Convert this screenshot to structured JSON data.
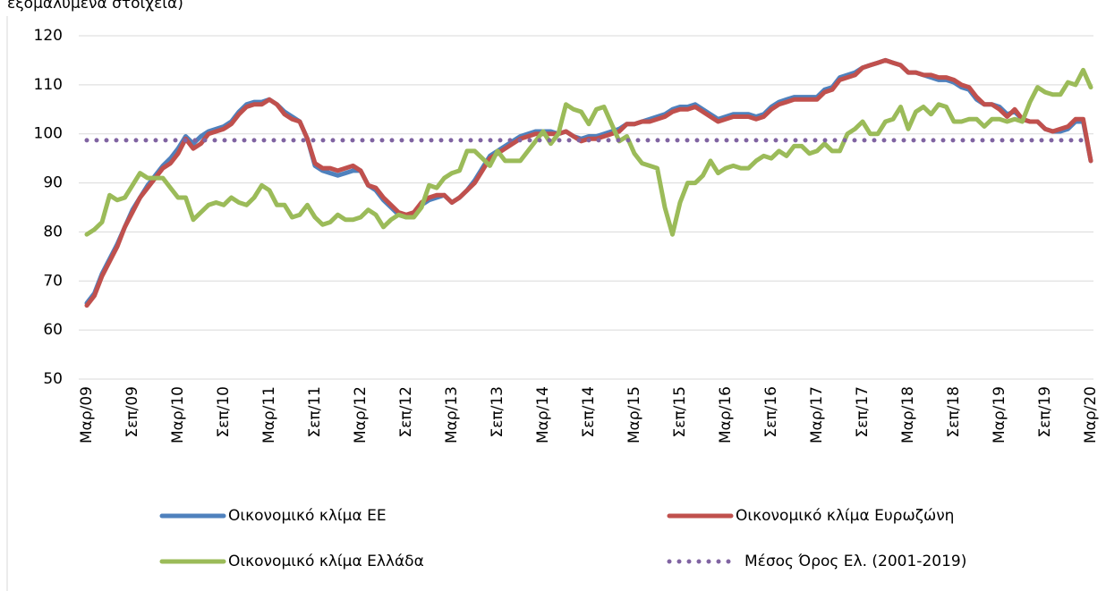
{
  "chart_data": {
    "type": "line",
    "subtitle": "εξομαλυμένα στοιχεία)",
    "categories": [
      "Μαρ/09",
      null,
      null,
      null,
      null,
      null,
      "Σεπ/09",
      null,
      null,
      null,
      null,
      null,
      "Μαρ/10",
      null,
      null,
      null,
      null,
      null,
      "Σεπ/10",
      null,
      null,
      null,
      null,
      null,
      "Μαρ/11",
      null,
      null,
      null,
      null,
      null,
      "Σεπ/11",
      null,
      null,
      null,
      null,
      null,
      "Μαρ/12",
      null,
      null,
      null,
      null,
      null,
      "Σεπ/12",
      null,
      null,
      null,
      null,
      null,
      "Μαρ/13",
      null,
      null,
      null,
      null,
      null,
      "Σεπ/13",
      null,
      null,
      null,
      null,
      null,
      "Μαρ/14",
      null,
      null,
      null,
      null,
      null,
      "Σεπ/14",
      null,
      null,
      null,
      null,
      null,
      "Μαρ/15",
      null,
      null,
      null,
      null,
      null,
      "Σεπ/15",
      null,
      null,
      null,
      null,
      null,
      "Μαρ/16",
      null,
      null,
      null,
      null,
      null,
      "Σεπ/16",
      null,
      null,
      null,
      null,
      null,
      "Μαρ/17",
      null,
      null,
      null,
      null,
      null,
      "Σεπ/17",
      null,
      null,
      null,
      null,
      null,
      "Μαρ/18",
      null,
      null,
      null,
      null,
      null,
      "Σεπ/18",
      null,
      null,
      null,
      null,
      null,
      "Μαρ/19",
      null,
      null,
      null,
      null,
      null,
      "Σεπ/19",
      null,
      null,
      null,
      null,
      null,
      "Μαρ/20"
    ],
    "series": [
      {
        "name": "Οικονομικό κλίμα ΕΕ",
        "color": "#4f81bd",
        "values": [
          65.5,
          67.5,
          71.5,
          74.5,
          77.5,
          81,
          84.5,
          87,
          89.5,
          91.5,
          93.5,
          95,
          97,
          99.5,
          98,
          99.5,
          100.5,
          101,
          101.5,
          102.5,
          104.5,
          106,
          106.5,
          106.5,
          107,
          106,
          104.5,
          103.5,
          102.5,
          99,
          93.5,
          92.5,
          92,
          91.5,
          92,
          92.5,
          92.5,
          89.5,
          88.5,
          86.5,
          85,
          83.5,
          83,
          83.5,
          85.5,
          86.5,
          87,
          87.5,
          86,
          87,
          88.5,
          90.5,
          93,
          95.5,
          96.5,
          97.5,
          98.5,
          99.5,
          100,
          100.5,
          100.5,
          100.5,
          100,
          100.5,
          99.5,
          99,
          99.5,
          99.5,
          100,
          100.5,
          101,
          102,
          102,
          102.5,
          103,
          103.5,
          104,
          105,
          105.5,
          105.5,
          106,
          105,
          104,
          103,
          103.5,
          104,
          104,
          104,
          103.5,
          104,
          105.5,
          106.5,
          107,
          107.5,
          107.5,
          107.5,
          107.5,
          109,
          109.5,
          111.5,
          112,
          112.5,
          113.5,
          114,
          114.5,
          115,
          114.5,
          114,
          112.5,
          112.5,
          112,
          111.5,
          111,
          111,
          110.5,
          109.5,
          109,
          107,
          106,
          106,
          105.5,
          104,
          104.5,
          103,
          102.5,
          102.5,
          101,
          100.5,
          100.5,
          101,
          102.5,
          102.5,
          94.5
        ]
      },
      {
        "name": "Οικονομικό κλίμα Ευρωζώνη",
        "color": "#c0504d",
        "values": [
          65,
          67,
          71,
          74,
          77,
          81,
          84,
          87,
          89,
          91,
          93,
          94,
          96,
          99,
          97,
          98,
          100,
          100.5,
          101,
          102,
          104,
          105.5,
          106,
          106,
          107,
          106,
          104,
          103,
          102.5,
          99,
          94,
          93,
          93,
          92.5,
          93,
          93.5,
          92.5,
          89.5,
          89,
          87,
          85.5,
          84,
          83.5,
          84,
          86,
          87,
          87.5,
          87.5,
          86,
          87,
          88.5,
          90,
          92.5,
          95,
          96,
          97,
          98,
          99,
          99.5,
          100,
          100,
          100,
          100,
          100.5,
          99.5,
          98.5,
          99,
          99,
          99.5,
          100,
          100.5,
          102,
          102,
          102.5,
          102.5,
          103,
          103.5,
          104.5,
          105,
          105,
          105.5,
          104.5,
          103.5,
          102.5,
          103,
          103.5,
          103.5,
          103.5,
          103,
          103.5,
          105,
          106,
          106.5,
          107,
          107,
          107,
          107,
          108.5,
          109,
          111,
          111.5,
          112,
          113.5,
          114,
          114.5,
          115,
          114.5,
          114,
          112.5,
          112.5,
          112,
          112,
          111.5,
          111.5,
          111,
          110,
          109.5,
          107.5,
          106,
          106,
          105,
          103.5,
          105,
          103,
          102.5,
          102.5,
          101,
          100.5,
          101,
          101.5,
          103,
          103,
          94.5
        ]
      },
      {
        "name": "Οικονομικό κλίμα Ελλάδα",
        "color": "#9bbb59",
        "values": [
          79.5,
          80.5,
          82,
          87.5,
          86.5,
          87,
          89.5,
          92,
          91,
          91,
          91,
          89,
          87,
          87,
          82.5,
          84,
          85.5,
          86,
          85.5,
          87,
          86,
          85.5,
          87,
          89.5,
          88.5,
          85.5,
          85.5,
          83,
          83.5,
          85.5,
          83,
          81.5,
          82,
          83.5,
          82.5,
          82.5,
          83,
          84.5,
          83.5,
          81,
          82.5,
          83.5,
          83,
          83,
          85,
          89.5,
          89,
          91,
          92,
          92.5,
          96.5,
          96.5,
          95,
          93.5,
          96.5,
          94.5,
          94.5,
          94.5,
          96.5,
          98.5,
          100.5,
          98,
          100,
          106,
          105,
          104.5,
          102,
          105,
          105.5,
          102,
          98.5,
          99.5,
          96,
          94,
          93.5,
          93,
          85,
          79.5,
          86,
          90,
          90,
          91.5,
          94.5,
          92,
          93,
          93.5,
          93,
          93,
          94.5,
          95.5,
          95,
          96.5,
          95.5,
          97.5,
          97.5,
          96,
          96.5,
          98,
          96.5,
          96.5,
          100,
          101,
          102.5,
          100,
          100,
          102.5,
          103,
          105.5,
          101,
          104.5,
          105.5,
          104,
          106,
          105.5,
          102.5,
          102.5,
          103,
          103,
          101.5,
          103,
          103,
          102.5,
          103,
          102.5,
          106.5,
          109.5,
          108.5,
          108,
          108,
          110.5,
          110,
          113,
          109.5
        ]
      }
    ],
    "reference_line": {
      "name": "Μέσος Όρος Ελ. (2001-2019)",
      "value": 98.7,
      "color": "#8064a2"
    },
    "ylim": [
      50,
      120
    ],
    "yticks": [
      50,
      60,
      70,
      80,
      90,
      100,
      110,
      120
    ],
    "grid": true
  }
}
